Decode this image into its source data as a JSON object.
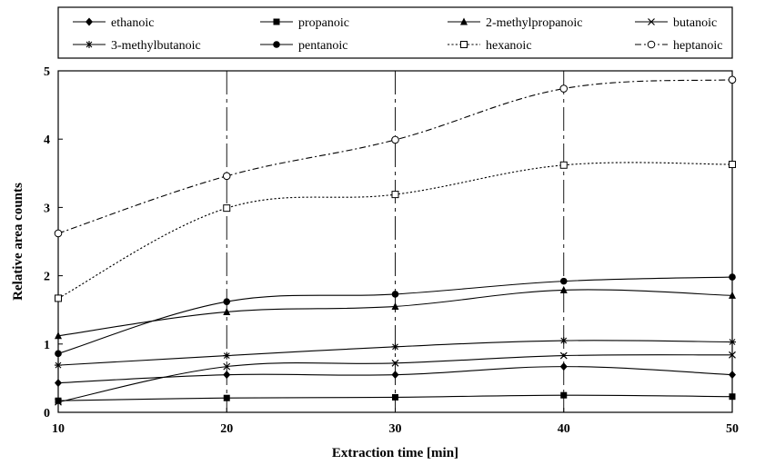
{
  "chart_data": {
    "type": "line",
    "xlabel": "Extraction time [min]",
    "ylabel": "Relative area counts",
    "x": [
      10,
      20,
      30,
      40,
      50
    ],
    "xlim": [
      10,
      50
    ],
    "ylim": [
      0,
      5
    ],
    "xticks": [
      "10",
      "20",
      "30",
      "40",
      "50"
    ],
    "yticks": [
      "0",
      "1",
      "2",
      "3",
      "4",
      "5"
    ],
    "grid": "vertical dash-dot lines at x = 20, 30, 40",
    "legend_position": "top",
    "series": [
      {
        "name": "ethanoic",
        "marker": "diamond-filled",
        "line": "solid",
        "values": [
          0.43,
          0.55,
          0.55,
          0.67,
          0.55
        ]
      },
      {
        "name": "propanoic",
        "marker": "square-filled",
        "line": "solid",
        "values": [
          0.17,
          0.21,
          0.22,
          0.25,
          0.23
        ]
      },
      {
        "name": "2-methylpropanoic",
        "marker": "triangle-filled",
        "line": "solid",
        "values": [
          1.12,
          1.47,
          1.55,
          1.79,
          1.71
        ]
      },
      {
        "name": "butanoic",
        "marker": "x",
        "line": "solid",
        "values": [
          0.15,
          0.67,
          0.72,
          0.83,
          0.84
        ]
      },
      {
        "name": "3-methylbutanoic",
        "marker": "star",
        "line": "solid",
        "values": [
          0.69,
          0.83,
          0.96,
          1.05,
          1.03
        ]
      },
      {
        "name": "pentanoic",
        "marker": "circle-filled",
        "line": "solid",
        "values": [
          0.86,
          1.62,
          1.73,
          1.92,
          1.98
        ]
      },
      {
        "name": "hexanoic",
        "marker": "square-open",
        "line": "dotted",
        "values": [
          1.67,
          2.99,
          3.19,
          3.62,
          3.63
        ]
      },
      {
        "name": "heptanoic",
        "marker": "circle-open",
        "line": "dash-dot",
        "values": [
          2.62,
          3.46,
          3.99,
          4.74,
          4.87
        ]
      }
    ]
  }
}
